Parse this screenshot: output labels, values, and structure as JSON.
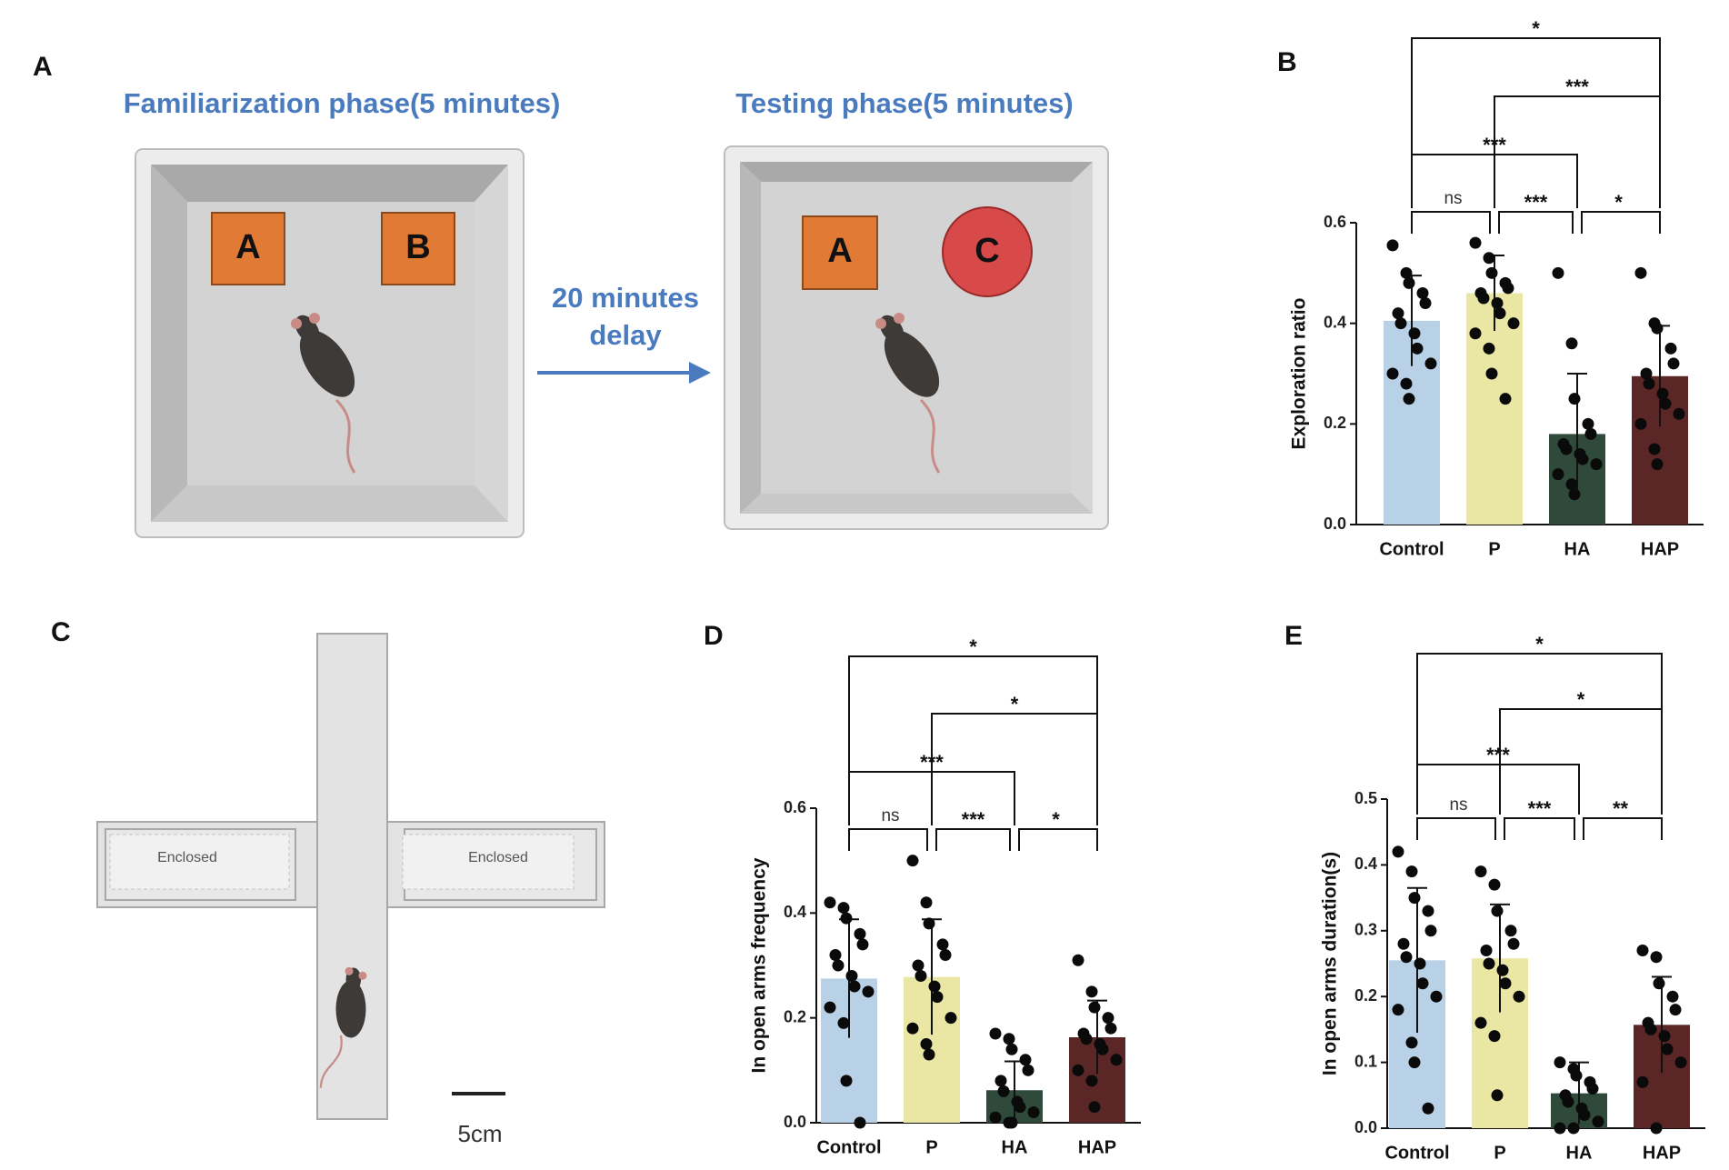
{
  "panel_a": {
    "label": "A",
    "familiarization_title": "Familiarization phase(5 minutes)",
    "testing_title": "Testing phase(5 minutes)",
    "delay_text": [
      "20 minutes",
      "delay"
    ],
    "objects": [
      "A",
      "B",
      "A",
      "C"
    ]
  },
  "panel_c": {
    "label": "C",
    "arms": [
      "Enclosed",
      "Enclosed"
    ],
    "scale": "5cm"
  },
  "chart_data": [
    {
      "type": "bar",
      "panel_label": "B",
      "ylabel": "Exploration ratio",
      "categories": [
        "Control",
        "P",
        "HA",
        "HAP"
      ],
      "values": [
        0.405,
        0.46,
        0.18,
        0.295
      ],
      "errors": [
        0.09,
        0.075,
        0.12,
        0.1
      ],
      "colors": [
        "#b9d1e7",
        "#e9e7a3",
        "#2f4a3a",
        "#5a2626"
      ],
      "points": [
        [
          0.555,
          0.5,
          0.48,
          0.46,
          0.44,
          0.42,
          0.4,
          0.38,
          0.35,
          0.32,
          0.3,
          0.28,
          0.25
        ],
        [
          0.56,
          0.53,
          0.5,
          0.48,
          0.47,
          0.46,
          0.45,
          0.44,
          0.42,
          0.4,
          0.38,
          0.35,
          0.3,
          0.25
        ],
        [
          0.5,
          0.36,
          0.25,
          0.2,
          0.18,
          0.16,
          0.15,
          0.14,
          0.13,
          0.12,
          0.1,
          0.08,
          0.06
        ],
        [
          0.5,
          0.4,
          0.39,
          0.35,
          0.32,
          0.3,
          0.28,
          0.26,
          0.24,
          0.22,
          0.2,
          0.15,
          0.12
        ]
      ],
      "ylim": [
        0,
        0.6
      ],
      "yticks": [
        {
          "value": 0,
          "label": "0.0"
        },
        {
          "value": 0.2,
          "label": "0.2"
        },
        {
          "value": 0.4,
          "label": "0.4"
        },
        {
          "value": 0.6,
          "label": "0.6"
        }
      ],
      "significance": [
        [
          {
            "groups": [
              0,
              3
            ],
            "label": "*"
          }
        ],
        [
          {
            "groups": [
              1,
              3
            ],
            "label": "***"
          }
        ],
        [
          {
            "groups": [
              0,
              2
            ],
            "label": "***"
          }
        ],
        [
          {
            "groups": [
              0,
              1
            ],
            "label": "ns"
          },
          {
            "groups": [
              1,
              2
            ],
            "label": "***"
          },
          {
            "groups": [
              2,
              3
            ],
            "label": "*"
          }
        ]
      ]
    },
    {
      "type": "bar",
      "panel_label": "D",
      "ylabel": "In open arms frequency",
      "categories": [
        "Control",
        "P",
        "HA",
        "HAP"
      ],
      "values": [
        0.275,
        0.278,
        0.062,
        0.163
      ],
      "errors": [
        0.113,
        0.11,
        0.055,
        0.07
      ],
      "colors": [
        "#b9d1e7",
        "#e9e7a3",
        "#2f4a3a",
        "#5a2626"
      ],
      "points": [
        [
          0.42,
          0.41,
          0.39,
          0.36,
          0.34,
          0.32,
          0.3,
          0.28,
          0.26,
          0.25,
          0.22,
          0.19,
          0.08,
          0
        ],
        [
          0.5,
          0.42,
          0.38,
          0.34,
          0.32,
          0.3,
          0.28,
          0.26,
          0.24,
          0.2,
          0.18,
          0.15,
          0.13
        ],
        [
          0.17,
          0.16,
          0.14,
          0.12,
          0.1,
          0.08,
          0.06,
          0.04,
          0.03,
          0.02,
          0.01,
          0,
          0
        ],
        [
          0.31,
          0.25,
          0.22,
          0.2,
          0.18,
          0.17,
          0.16,
          0.15,
          0.14,
          0.12,
          0.1,
          0.08,
          0.03
        ]
      ],
      "ylim": [
        0,
        0.6
      ],
      "yticks": [
        {
          "value": 0,
          "label": "0.0"
        },
        {
          "value": 0.2,
          "label": "0.2"
        },
        {
          "value": 0.4,
          "label": "0.4"
        },
        {
          "value": 0.6,
          "label": "0.6"
        }
      ],
      "significance": [
        [
          {
            "groups": [
              0,
              3
            ],
            "label": "*"
          }
        ],
        [
          {
            "groups": [
              1,
              3
            ],
            "label": "*"
          }
        ],
        [
          {
            "groups": [
              0,
              2
            ],
            "label": "***"
          }
        ],
        [
          {
            "groups": [
              0,
              1
            ],
            "label": "ns"
          },
          {
            "groups": [
              1,
              2
            ],
            "label": "***"
          },
          {
            "groups": [
              2,
              3
            ],
            "label": "*"
          }
        ]
      ]
    },
    {
      "type": "bar",
      "panel_label": "E",
      "ylabel": "In open arms duration(s)",
      "categories": [
        "Control",
        "P",
        "HA",
        "HAP"
      ],
      "values": [
        0.255,
        0.258,
        0.053,
        0.157
      ],
      "errors": [
        0.11,
        0.082,
        0.047,
        0.073
      ],
      "colors": [
        "#b9d1e7",
        "#e9e7a3",
        "#2f4a3a",
        "#5a2626"
      ],
      "points": [
        [
          0.42,
          0.39,
          0.35,
          0.33,
          0.3,
          0.28,
          0.26,
          0.25,
          0.22,
          0.2,
          0.18,
          0.13,
          0.1,
          0.03
        ],
        [
          0.39,
          0.37,
          0.33,
          0.3,
          0.28,
          0.27,
          0.25,
          0.24,
          0.22,
          0.2,
          0.16,
          0.14,
          0.05
        ],
        [
          0.1,
          0.09,
          0.08,
          0.07,
          0.06,
          0.05,
          0.04,
          0.03,
          0.02,
          0.01,
          0,
          0
        ],
        [
          0.27,
          0.26,
          0.22,
          0.2,
          0.18,
          0.16,
          0.15,
          0.14,
          0.12,
          0.1,
          0.07,
          0
        ]
      ],
      "ylim": [
        0,
        0.5
      ],
      "yticks": [
        {
          "value": 0,
          "label": "0.0"
        },
        {
          "value": 0.1,
          "label": "0.1"
        },
        {
          "value": 0.2,
          "label": "0.2"
        },
        {
          "value": 0.3,
          "label": "0.3"
        },
        {
          "value": 0.4,
          "label": "0.4"
        },
        {
          "value": 0.5,
          "label": "0.5"
        }
      ],
      "significance": [
        [
          {
            "groups": [
              0,
              3
            ],
            "label": "*"
          }
        ],
        [
          {
            "groups": [
              1,
              3
            ],
            "label": "*"
          }
        ],
        [
          {
            "groups": [
              0,
              2
            ],
            "label": "***"
          }
        ],
        [
          {
            "groups": [
              0,
              1
            ],
            "label": "ns"
          },
          {
            "groups": [
              1,
              2
            ],
            "label": "***"
          },
          {
            "groups": [
              2,
              3
            ],
            "label": "**"
          }
        ]
      ]
    }
  ]
}
